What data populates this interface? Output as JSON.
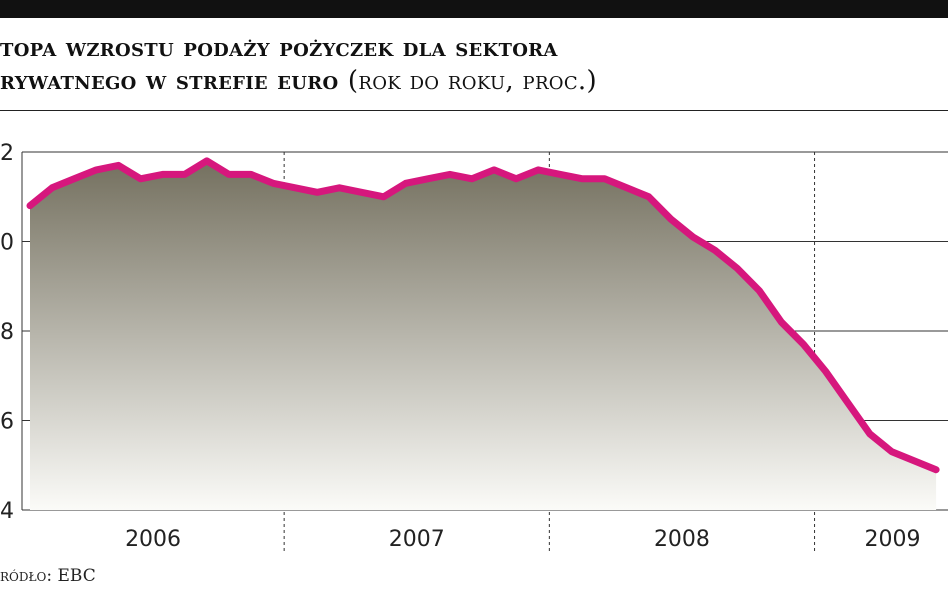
{
  "title": {
    "line1": "topa wzrostu podaży pożyczek dla sektora",
    "line2": "rywatnego w strefie euro",
    "unit": "(rok do roku, proc.)"
  },
  "source": "ródło: EBC",
  "colors": {
    "line": "#d6177d",
    "area_top": "#74705f",
    "area_bottom": "#fbfbf8",
    "grid": "#333333"
  },
  "chart_data": {
    "type": "area",
    "title": "topa wzrostu podaży pożyczek dla sektora rywatnego w strefie euro (rok do roku, proc.)",
    "xlabel": "",
    "ylabel": "",
    "x_categories": [
      "2006",
      "2007",
      "2008",
      "2009"
    ],
    "y_tick_labels": [
      "2",
      "0",
      "8",
      "6",
      "4"
    ],
    "ylim": [
      4,
      12
    ],
    "grid": "vertical dashed between years, horizontal solid at y ticks",
    "legend": "none",
    "series": [
      {
        "x": [
          "2006-01",
          "2006-02",
          "2006-03",
          "2006-04",
          "2006-05",
          "2006-06",
          "2006-07",
          "2006-08",
          "2006-09",
          "2006-10",
          "2006-11",
          "2006-12",
          "2007-01",
          "2007-02",
          "2007-03",
          "2007-04",
          "2007-05",
          "2007-06",
          "2007-07",
          "2007-08",
          "2007-09",
          "2007-10",
          "2007-11",
          "2007-12",
          "2008-01",
          "2008-02",
          "2008-03",
          "2008-04",
          "2008-05",
          "2008-06",
          "2008-07",
          "2008-08",
          "2008-09",
          "2008-10",
          "2008-11",
          "2008-12",
          "2009-01",
          "2009-02",
          "2009-03",
          "2009-04",
          "2009-05",
          "2009-06"
        ],
        "values": [
          10.8,
          11.2,
          11.4,
          11.6,
          11.7,
          11.4,
          11.5,
          11.5,
          11.8,
          11.5,
          11.5,
          11.3,
          11.2,
          11.1,
          11.2,
          11.1,
          11.0,
          11.3,
          11.4,
          11.5,
          11.4,
          11.6,
          11.4,
          11.6,
          11.5,
          11.4,
          11.4,
          11.2,
          11.0,
          10.5,
          10.1,
          9.8,
          9.4,
          8.9,
          8.2,
          7.7,
          7.1,
          6.4,
          5.7,
          5.3,
          5.1,
          4.9
        ]
      }
    ]
  }
}
